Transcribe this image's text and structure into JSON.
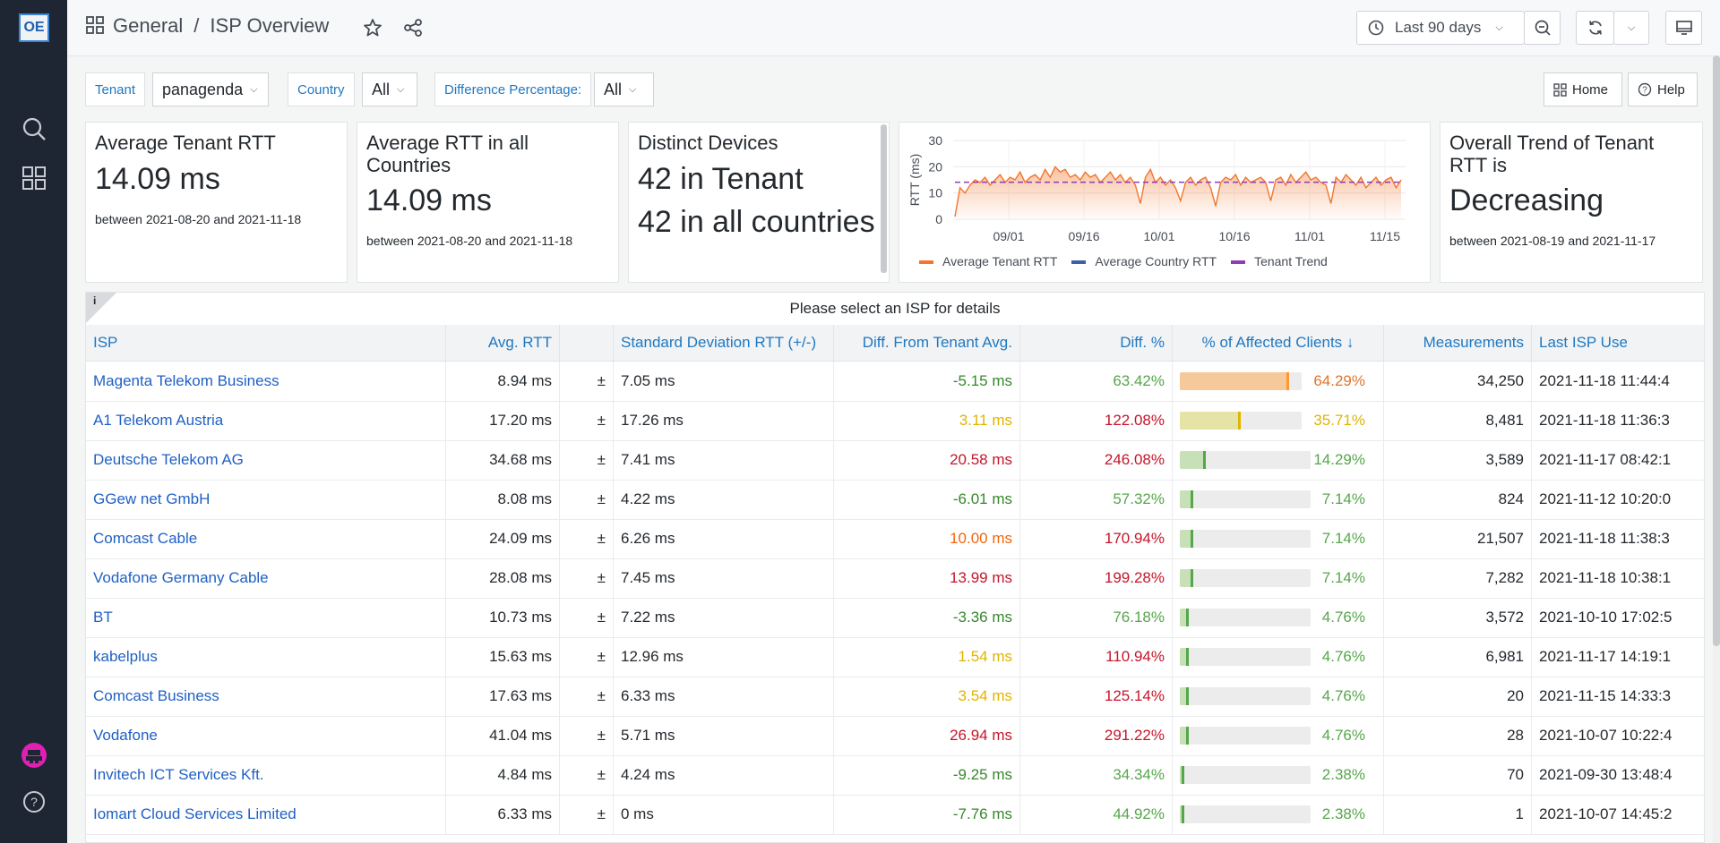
{
  "app": {
    "logo_text": "OE"
  },
  "breadcrumb": {
    "folder": "General",
    "separator": "/",
    "dashboard": "ISP Overview"
  },
  "toolbar": {
    "time_range": "Last 90 days"
  },
  "variables": [
    {
      "label": "Tenant",
      "value": "panagenda"
    },
    {
      "label": "Country",
      "value": "All"
    },
    {
      "label": "Difference Percentage:",
      "value": "All"
    }
  ],
  "links": {
    "home": "Home",
    "help": "Help"
  },
  "stats": {
    "tenant_rtt": {
      "title": "Average Tenant RTT",
      "value": "14.09 ms",
      "range": "between 2021-08-20 and 2021-11-18"
    },
    "country_rtt": {
      "title": "Average RTT in all Countries",
      "value": "14.09 ms",
      "range": "between 2021-08-20 and 2021-11-18"
    },
    "devices": {
      "title": "Distinct Devices",
      "line1": "42 in Tenant",
      "line2": "42 in all countries"
    },
    "trend": {
      "title": "Overall Trend of Tenant RTT is",
      "value": "Decreasing",
      "range": "between 2021-08-19 and 2021-11-17"
    }
  },
  "colors": {
    "tenant": "#f2762e",
    "country": "#3b5fa8",
    "trend": "#8f3bb8",
    "accent": "#1f78c1"
  },
  "chart_data": {
    "type": "line",
    "title": "",
    "xlabel": "",
    "ylabel": "RTT (ms)",
    "ylim": [
      0,
      30
    ],
    "yticks": [
      "0",
      "10",
      "20",
      "30"
    ],
    "xticks": [
      "09/01",
      "09/16",
      "10/01",
      "10/16",
      "11/01",
      "11/15"
    ],
    "grid": true,
    "legend": "bottom",
    "series": [
      {
        "name": "Average Tenant RTT",
        "values": [
          1,
          12,
          10,
          13,
          15,
          14,
          16,
          13,
          15,
          17,
          14,
          16,
          15,
          18,
          14,
          16,
          17,
          15,
          19,
          16,
          20,
          18,
          19,
          16,
          17,
          15,
          18,
          16,
          17,
          14,
          16,
          18,
          15,
          17,
          14,
          16,
          13,
          6,
          16,
          19,
          14,
          16,
          13,
          15,
          12,
          7,
          14,
          16,
          13,
          15,
          16,
          12,
          5,
          14,
          16,
          15,
          17,
          13,
          16,
          14,
          15,
          16,
          14,
          7,
          15,
          16,
          13,
          17,
          14,
          16,
          18,
          15,
          16,
          14,
          13,
          6,
          16,
          14,
          17,
          15,
          13,
          16,
          12,
          14,
          16,
          13,
          15,
          16,
          12,
          15
        ]
      },
      {
        "name": "Average Country RTT",
        "values": []
      },
      {
        "name": "Tenant Trend",
        "values": [
          14.09,
          14.09
        ]
      }
    ]
  },
  "table": {
    "title": "Please select an ISP for details",
    "info": "i",
    "headers": [
      "ISP",
      "Avg. RTT",
      "",
      "Standard Deviation RTT (+/-)",
      "Diff. From Tenant Avg.",
      "Diff. %",
      "% of Affected Clients ↓",
      "Measurements",
      "Last ISP Use"
    ],
    "rows": [
      {
        "isp": "Magenta Telekom Business",
        "avg": "8.94 ms",
        "pm": "±",
        "sd": "7.05 ms",
        "diff": "-5.15 ms",
        "diff_color": "#37872d",
        "pct": "63.42%",
        "pct_color": "#56a64b",
        "aff": "64.29%",
        "aff_frac": 0.6429,
        "aff_color": "#f5c99a",
        "aff_edge": "#ff9830",
        "aff_text": "#e0752d",
        "meas": "34,250",
        "last": "2021-11-18 11:44:4"
      },
      {
        "isp": "A1 Telekom Austria",
        "avg": "17.20 ms",
        "pm": "±",
        "sd": "17.26 ms",
        "diff": "3.11 ms",
        "diff_color": "#e0b400",
        "pct": "122.08%",
        "pct_color": "#c4162a",
        "aff": "35.71%",
        "aff_frac": 0.3571,
        "aff_color": "#e5e3a5",
        "aff_edge": "#e0b400",
        "aff_text": "#e0b400",
        "meas": "8,481",
        "last": "2021-11-18 11:36:3"
      },
      {
        "isp": "Deutsche Telekom AG",
        "avg": "34.68 ms",
        "pm": "±",
        "sd": "7.41 ms",
        "diff": "20.58 ms",
        "diff_color": "#c4162a",
        "pct": "246.08%",
        "pct_color": "#c4162a",
        "aff": "14.29%",
        "aff_frac": 0.1429,
        "aff_color": "#c8e0b8",
        "aff_edge": "#56a64b",
        "aff_text": "#56a64b",
        "meas": "3,589",
        "last": "2021-11-17 08:42:1"
      },
      {
        "isp": "GGew net GmbH",
        "avg": "8.08 ms",
        "pm": "±",
        "sd": "4.22 ms",
        "diff": "-6.01 ms",
        "diff_color": "#37872d",
        "pct": "57.32%",
        "pct_color": "#56a64b",
        "aff": "7.14%",
        "aff_frac": 0.0714,
        "aff_color": "#c8e0b8",
        "aff_edge": "#56a64b",
        "aff_text": "#56a64b",
        "meas": "824",
        "last": "2021-11-12 10:20:0"
      },
      {
        "isp": "Comcast Cable",
        "avg": "24.09 ms",
        "pm": "±",
        "sd": "6.26 ms",
        "diff": "10.00 ms",
        "diff_color": "#f2660e",
        "pct": "170.94%",
        "pct_color": "#c4162a",
        "aff": "7.14%",
        "aff_frac": 0.0714,
        "aff_color": "#c8e0b8",
        "aff_edge": "#56a64b",
        "aff_text": "#56a64b",
        "meas": "21,507",
        "last": "2021-11-18 11:38:3"
      },
      {
        "isp": "Vodafone Germany Cable",
        "avg": "28.08 ms",
        "pm": "±",
        "sd": "7.45 ms",
        "diff": "13.99 ms",
        "diff_color": "#c4162a",
        "pct": "199.28%",
        "pct_color": "#c4162a",
        "aff": "7.14%",
        "aff_frac": 0.0714,
        "aff_color": "#c8e0b8",
        "aff_edge": "#56a64b",
        "aff_text": "#56a64b",
        "meas": "7,282",
        "last": "2021-11-18 10:38:1"
      },
      {
        "isp": "BT",
        "avg": "10.73 ms",
        "pm": "±",
        "sd": "7.22 ms",
        "diff": "-3.36 ms",
        "diff_color": "#37872d",
        "pct": "76.18%",
        "pct_color": "#56a64b",
        "aff": "4.76%",
        "aff_frac": 0.0476,
        "aff_color": "#c8e0b8",
        "aff_edge": "#56a64b",
        "aff_text": "#56a64b",
        "meas": "3,572",
        "last": "2021-10-10 17:02:5"
      },
      {
        "isp": "kabelplus",
        "avg": "15.63 ms",
        "pm": "±",
        "sd": "12.96 ms",
        "diff": "1.54 ms",
        "diff_color": "#e0b400",
        "pct": "110.94%",
        "pct_color": "#c4162a",
        "aff": "4.76%",
        "aff_frac": 0.0476,
        "aff_color": "#c8e0b8",
        "aff_edge": "#56a64b",
        "aff_text": "#56a64b",
        "meas": "6,981",
        "last": "2021-11-17 14:19:1"
      },
      {
        "isp": "Comcast Business",
        "avg": "17.63 ms",
        "pm": "±",
        "sd": "6.33 ms",
        "diff": "3.54 ms",
        "diff_color": "#e0b400",
        "pct": "125.14%",
        "pct_color": "#c4162a",
        "aff": "4.76%",
        "aff_frac": 0.0476,
        "aff_color": "#c8e0b8",
        "aff_edge": "#56a64b",
        "aff_text": "#56a64b",
        "meas": "20",
        "last": "2021-11-15 14:33:3"
      },
      {
        "isp": "Vodafone",
        "avg": "41.04 ms",
        "pm": "±",
        "sd": "5.71 ms",
        "diff": "26.94 ms",
        "diff_color": "#c4162a",
        "pct": "291.22%",
        "pct_color": "#c4162a",
        "aff": "4.76%",
        "aff_frac": 0.0476,
        "aff_color": "#c8e0b8",
        "aff_edge": "#56a64b",
        "aff_text": "#56a64b",
        "meas": "28",
        "last": "2021-10-07 10:22:4"
      },
      {
        "isp": "Invitech ICT Services Kft.",
        "avg": "4.84 ms",
        "pm": "±",
        "sd": "4.24 ms",
        "diff": "-9.25 ms",
        "diff_color": "#37872d",
        "pct": "34.34%",
        "pct_color": "#56a64b",
        "aff": "2.38%",
        "aff_frac": 0.0238,
        "aff_color": "#c8e0b8",
        "aff_edge": "#56a64b",
        "aff_text": "#56a64b",
        "meas": "70",
        "last": "2021-09-30 13:48:4"
      },
      {
        "isp": "Iomart Cloud Services Limited",
        "avg": "6.33 ms",
        "pm": "±",
        "sd": "0 ms",
        "diff": "-7.76 ms",
        "diff_color": "#37872d",
        "pct": "44.92%",
        "pct_color": "#56a64b",
        "aff": "2.38%",
        "aff_frac": 0.0238,
        "aff_color": "#c8e0b8",
        "aff_edge": "#56a64b",
        "aff_text": "#56a64b",
        "meas": "1",
        "last": "2021-10-07 14:45:2"
      }
    ]
  }
}
